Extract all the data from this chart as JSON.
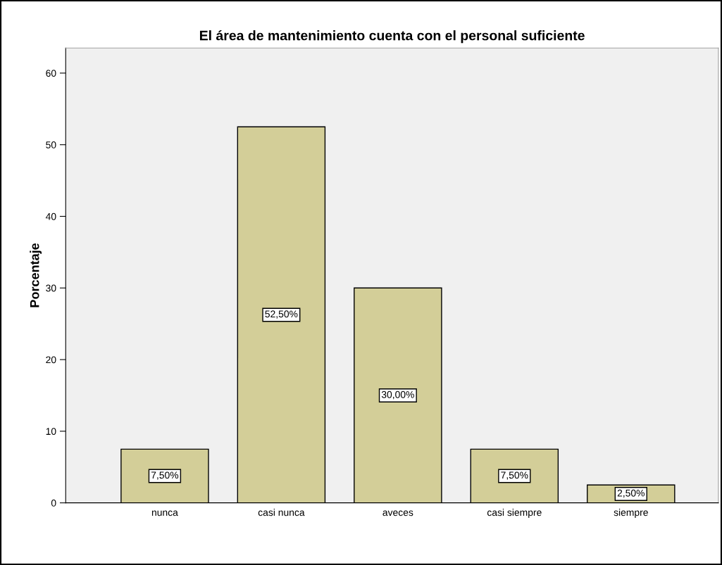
{
  "chart_data": {
    "type": "bar",
    "title": "El área de mantenimiento cuenta con el personal suficiente",
    "ylabel": "Porcentaje",
    "categories": [
      "nunca",
      "casi nunca",
      "aveces",
      "casi siempre",
      "siempre"
    ],
    "values": [
      7.5,
      52.5,
      30.0,
      7.5,
      2.5
    ],
    "value_labels": [
      "7,50%",
      "52,50%",
      "30,00%",
      "7,50%",
      "2,50%"
    ],
    "color": "#d3ce98",
    "ylim": [
      0,
      63.5
    ],
    "yticks": [
      0,
      10,
      20,
      30,
      40,
      50,
      60
    ],
    "grid": false,
    "legend": false
  }
}
